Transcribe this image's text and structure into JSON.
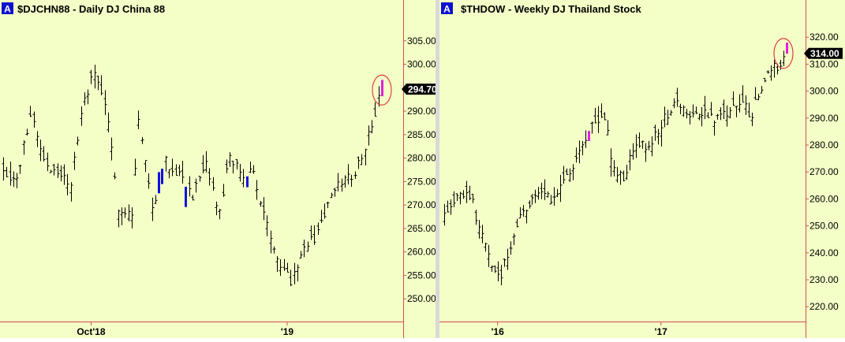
{
  "chart_data": [
    {
      "type": "ohlc",
      "badge": "A",
      "symbol": "$DJCHN88",
      "title": "$DJCHN88 - Daily  DJ China 88",
      "y_ticks": [
        "305.00",
        "300.00",
        "295.00",
        "290.00",
        "285.00",
        "280.00",
        "275.00",
        "270.00",
        "265.00",
        "260.00",
        "255.00",
        "250.00"
      ],
      "ylim": [
        246.5,
        309.5
      ],
      "x_labels": [
        {
          "label": "Oct'18",
          "index": 26
        },
        {
          "label": "'19",
          "index": 84
        }
      ],
      "last_price": "294.70",
      "last_value": 294.7,
      "n_bars": 113,
      "anchors": [
        [
          0,
          278
        ],
        [
          4,
          275
        ],
        [
          8,
          290
        ],
        [
          12,
          280
        ],
        [
          16,
          276
        ],
        [
          20,
          275
        ],
        [
          24,
          293
        ],
        [
          27,
          298
        ],
        [
          30,
          292
        ],
        [
          34,
          270
        ],
        [
          38,
          268
        ],
        [
          40,
          288
        ],
        [
          44,
          270
        ],
        [
          48,
          279
        ],
        [
          52,
          277
        ],
        [
          56,
          272
        ],
        [
          60,
          278
        ],
        [
          64,
          268
        ],
        [
          67,
          281
        ],
        [
          70,
          276
        ],
        [
          74,
          277
        ],
        [
          78,
          265
        ],
        [
          82,
          258
        ],
        [
          85,
          254
        ],
        [
          88,
          260
        ],
        [
          92,
          263
        ],
        [
          96,
          270
        ],
        [
          100,
          275
        ],
        [
          104,
          277
        ],
        [
          108,
          285
        ],
        [
          110,
          290
        ],
        [
          112,
          294
        ]
      ],
      "blue_bars": [
        46,
        47,
        54,
        72
      ],
      "magenta_bars": [
        112
      ],
      "circle_index": 112,
      "circle_value": 294.5,
      "colors": {
        "bg": "#f3ffc6",
        "axis": "#d45050",
        "bar": "#000000",
        "blue": "#1010e0",
        "magenta": "#e020e0",
        "circle": "#e04040",
        "badge": "#1010d0"
      }
    },
    {
      "type": "ohlc",
      "badge": "A",
      "symbol": "$THDOW",
      "title": "$THDOW - Weekly  DJ Thailand Stock",
      "y_ticks": [
        "320.00",
        "310.00",
        "300.00",
        "290.00",
        "280.00",
        "270.00",
        "260.00",
        "250.00",
        "240.00",
        "230.00",
        "220.00"
      ],
      "ylim": [
        214.5,
        326.5
      ],
      "x_labels": [
        {
          "label": "'16",
          "index": 17
        },
        {
          "label": "'17",
          "index": 69
        }
      ],
      "last_price": "314.00",
      "last_value": 314.0,
      "n_bars": 110,
      "anchors": [
        [
          0,
          256
        ],
        [
          3,
          260
        ],
        [
          6,
          262
        ],
        [
          9,
          258
        ],
        [
          12,
          245
        ],
        [
          15,
          235
        ],
        [
          17,
          230
        ],
        [
          21,
          242
        ],
        [
          25,
          255
        ],
        [
          29,
          262
        ],
        [
          33,
          260
        ],
        [
          37,
          263
        ],
        [
          40,
          270
        ],
        [
          44,
          282
        ],
        [
          46,
          285
        ],
        [
          48,
          290
        ],
        [
          51,
          290
        ],
        [
          54,
          270
        ],
        [
          57,
          268
        ],
        [
          60,
          278
        ],
        [
          64,
          280
        ],
        [
          68,
          285
        ],
        [
          71,
          292
        ],
        [
          75,
          295
        ],
        [
          79,
          290
        ],
        [
          83,
          293
        ],
        [
          86,
          288
        ],
        [
          90,
          293
        ],
        [
          94,
          294
        ],
        [
          98,
          292
        ],
        [
          101,
          300
        ],
        [
          104,
          308
        ],
        [
          107,
          311
        ],
        [
          109,
          314
        ]
      ],
      "blue_bars": [],
      "magenta_bars": [
        46,
        109
      ],
      "circle_index": 108,
      "circle_value": 314.0,
      "colors": {
        "bg": "#f3ffc6",
        "axis": "#d45050",
        "bar": "#000000",
        "blue": "#1010e0",
        "magenta": "#e020e0",
        "circle": "#e04040",
        "badge": "#1010d0"
      }
    }
  ]
}
